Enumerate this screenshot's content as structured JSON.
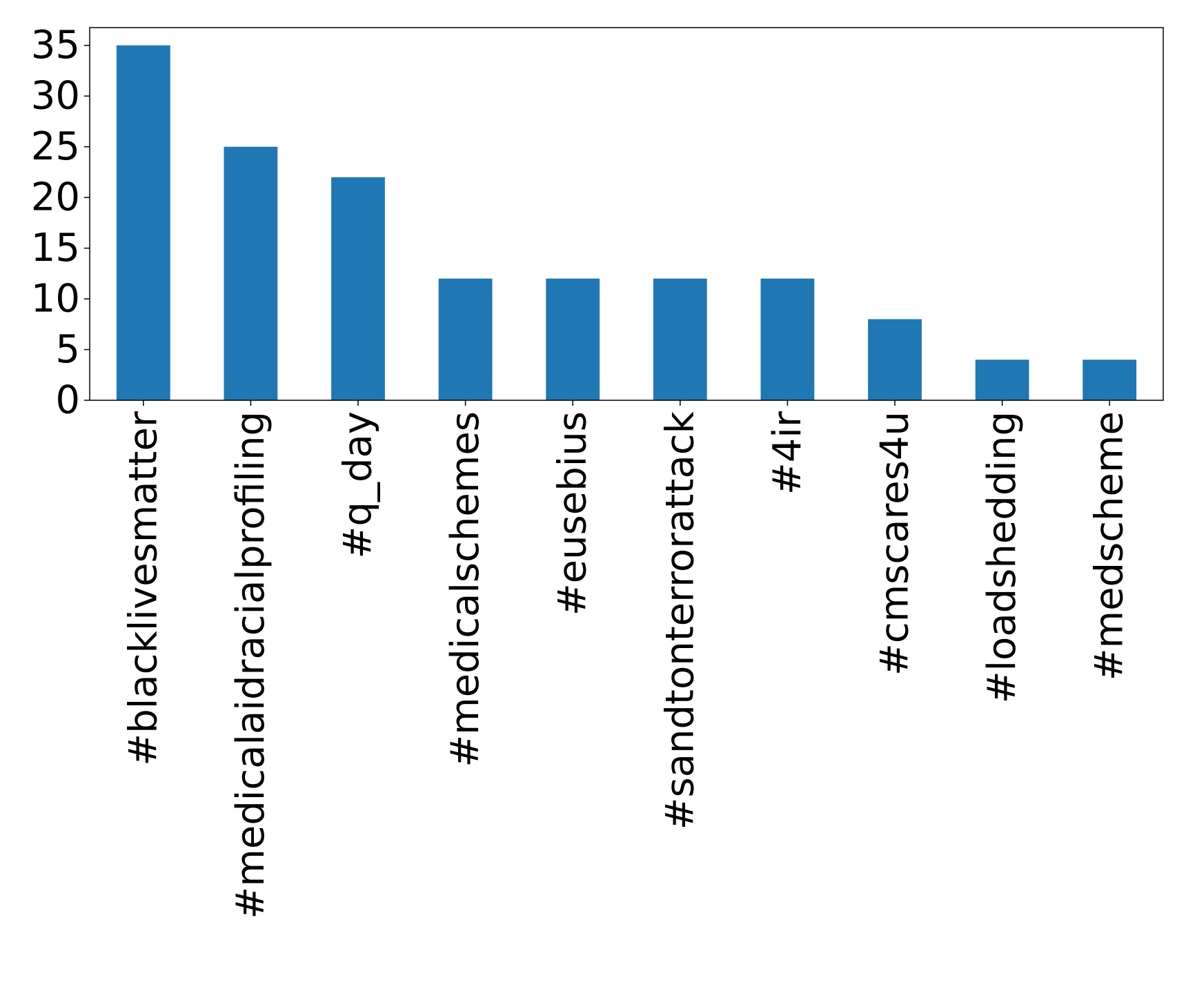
{
  "chart_data": {
    "type": "bar",
    "categories": [
      "#blacklivesmatter",
      "#medicalaidracialprofiling",
      "#q_day",
      "#medicalschemes",
      "#eusebius",
      "#sandtonterrorattack",
      "#4ir",
      "#cmscares4u",
      "#loadshedding",
      "#medscheme"
    ],
    "values": [
      35,
      25,
      22,
      12,
      12,
      12,
      12,
      8,
      4,
      4
    ],
    "title": "",
    "xlabel": "",
    "ylabel": "",
    "ylim": [
      0,
      36.75
    ],
    "yticks": [
      0,
      5,
      10,
      15,
      20,
      25,
      30,
      35
    ],
    "bar_color": "#1f77b4",
    "grid": false,
    "legend": "none"
  }
}
